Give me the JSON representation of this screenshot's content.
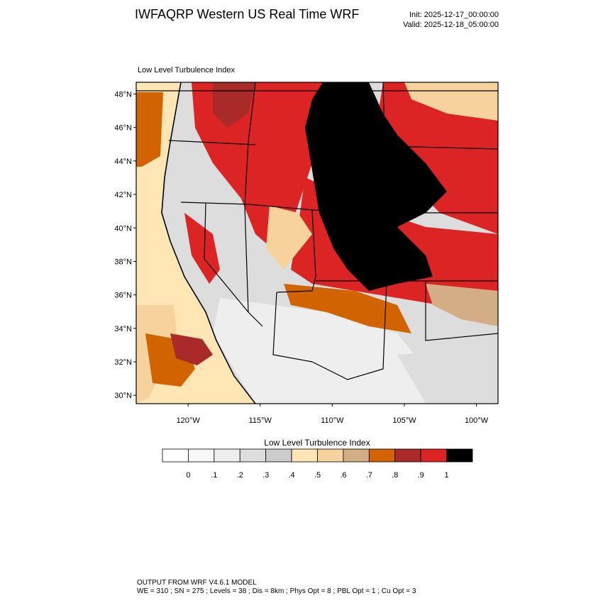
{
  "header": {
    "title": "IWFAQRP Western US Real Time WRF",
    "init": "Init: 2025-12-17_00:00:00",
    "valid": "Valid: 2025-12-18_05:00:00"
  },
  "map": {
    "subtitle": "Low Level Turbulence Index",
    "lat_labels": [
      "48°N",
      "46°N",
      "44°N",
      "42°N",
      "40°N",
      "38°N",
      "36°N",
      "34°N",
      "32°N",
      "30°N"
    ],
    "lat_values": [
      48,
      46,
      44,
      42,
      40,
      38,
      36,
      34,
      32,
      30
    ],
    "lon_labels": [
      "120°W",
      "115°W",
      "110°W",
      "105°W",
      "100°W"
    ],
    "lon_values": [
      -120,
      -115,
      -110,
      -105,
      -100
    ],
    "lat_range": [
      29.5,
      48.7
    ],
    "lon_range": [
      -123.6,
      -98.5
    ]
  },
  "colorbar": {
    "title": "Low Level Turbulence Index",
    "labels": [
      "0",
      ".1",
      ".2",
      ".3",
      ".4",
      ".5",
      ".6",
      ".7",
      ".8",
      ".9",
      "1"
    ],
    "colors": [
      "#ffffff",
      "#f8f8f8",
      "#eeeeee",
      "#dddddd",
      "#cccccc",
      "#ffe6b4",
      "#f7d29c",
      "#d3ad85",
      "#d26400",
      "#aa2a2a",
      "#dc2424",
      "#000000"
    ]
  },
  "footer": {
    "line1": "OUTPUT FROM WRF V4.6.1 MODEL",
    "line2": "WE = 310 ; SN = 275 ; Levels = 38 ; Dis = 8km ; Phys Opt = 8 ; PBL Opt = 1 ; Cu Opt = 3"
  }
}
